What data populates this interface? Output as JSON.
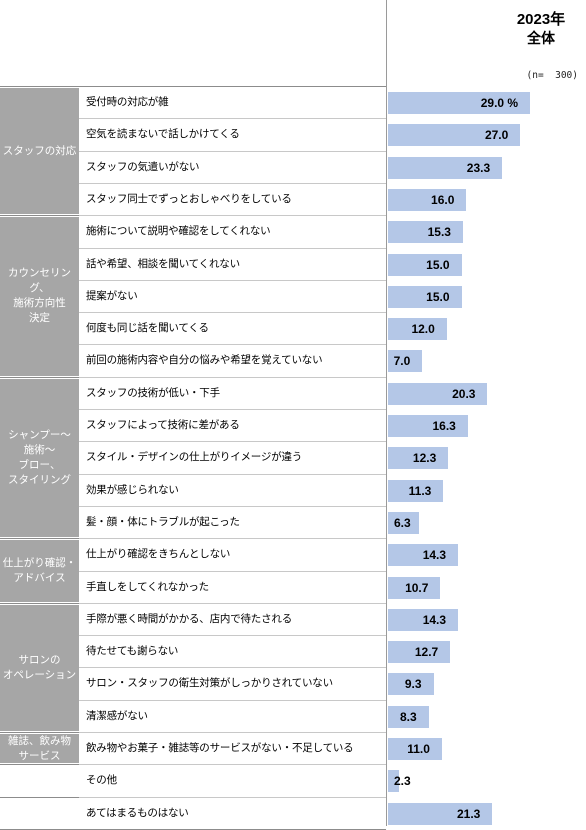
{
  "header": {
    "year": "2023年",
    "total": "全体",
    "n_label": "(n=  300)"
  },
  "chart_data": {
    "type": "bar",
    "orientation": "horizontal",
    "series": [
      {
        "name": "全体",
        "year": "2023年",
        "color": "#b4c7e7"
      }
    ],
    "value_unit": "%",
    "xlim": [
      0,
      40
    ],
    "groups": [
      {
        "label": "スタッフの対応",
        "start": 0,
        "end": 3
      },
      {
        "label": "カウンセリング、\n施術方向性\n決定",
        "start": 4,
        "end": 8
      },
      {
        "label": "シャンプー～\n施術～\nブロー、\nスタイリング",
        "start": 9,
        "end": 13
      },
      {
        "label": "仕上がり確認・\nアドバイス",
        "start": 14,
        "end": 15
      },
      {
        "label": "サロンの\nオペレーション",
        "start": 16,
        "end": 19
      },
      {
        "label": "雑誌、飲み物\nサービス",
        "start": 20,
        "end": 20
      },
      {
        "label": "",
        "start": 21,
        "end": 21
      },
      {
        "label": "",
        "start": 22,
        "end": 22
      }
    ],
    "categories": [
      "受付時の対応が雑",
      "空気を読まないで話しかけてくる",
      "スタッフの気遣いがない",
      "スタッフ同士でずっとおしゃべりをしている",
      "施術について説明や確認をしてくれない",
      "話や希望、相談を聞いてくれない",
      "提案がない",
      "何度も同じ話を聞いてくる",
      "前回の施術内容や自分の悩みや希望を覚えていない",
      "スタッフの技術が低い・下手",
      "スタッフによって技術に差がある",
      "スタイル・デザインの仕上がりイメージが違う",
      "効果が感じられない",
      "髪・顔・体にトラブルが起こった",
      "仕上がり確認をきちんとしない",
      "手直しをしてくれなかった",
      "手際が悪く時間がかかる、店内で待たされる",
      "待たせても謝らない",
      "サロン・スタッフの衛生対策がしっかりされていない",
      "清潔感がない",
      "飲み物やお菓子・雑誌等のサービスがない・不足している",
      "その他",
      "あてはまるものはない"
    ],
    "values": [
      29.0,
      27.0,
      23.3,
      16.0,
      15.3,
      15.0,
      15.0,
      12.0,
      7.0,
      20.3,
      16.3,
      12.3,
      11.3,
      6.3,
      14.3,
      10.7,
      14.3,
      12.7,
      9.3,
      8.3,
      11.0,
      2.3,
      21.3
    ],
    "value_labels": [
      "29.0 %",
      "27.0",
      "23.3",
      "16.0",
      "15.3",
      "15.0",
      "15.0",
      "12.0",
      "7.0",
      "20.3",
      "16.3",
      "12.3",
      "11.3",
      "6.3",
      "14.3",
      "10.7",
      "14.3",
      "12.7",
      "9.3",
      "8.3",
      "11.0",
      "2.3",
      "21.3"
    ]
  }
}
